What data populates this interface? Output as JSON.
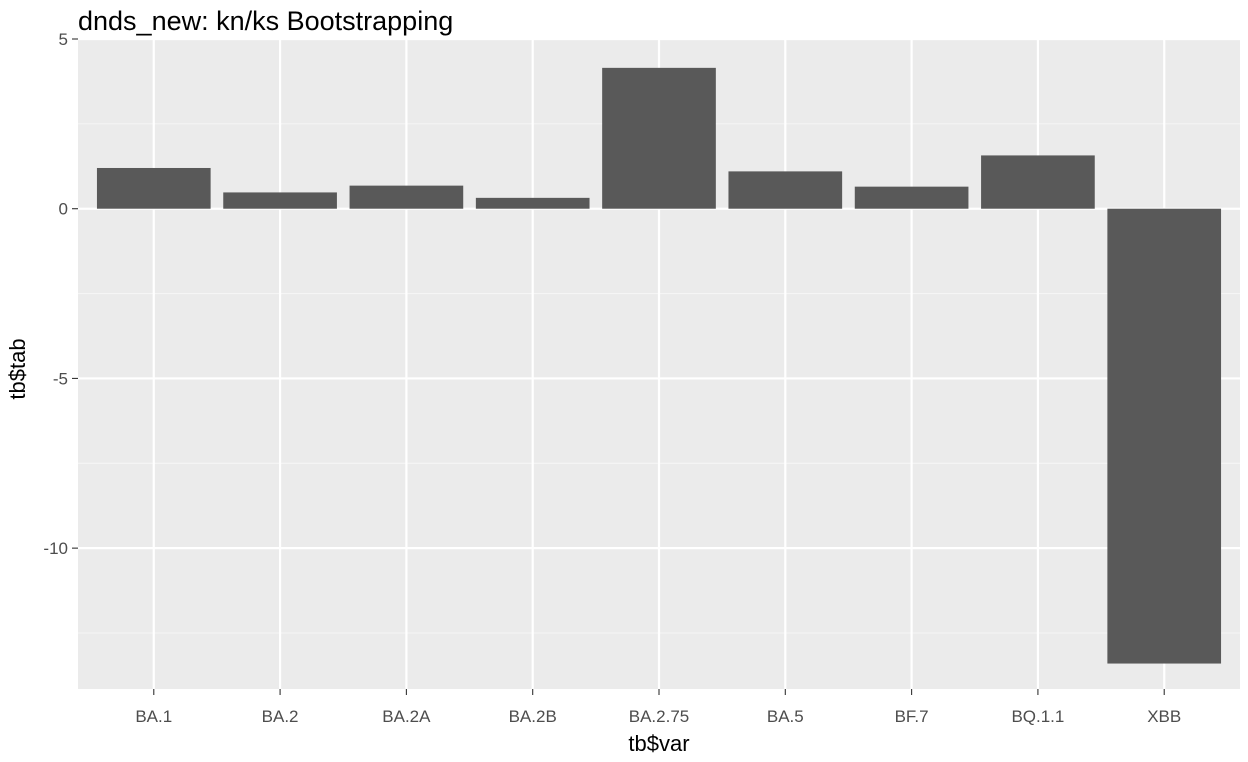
{
  "chart_data": {
    "type": "bar",
    "title": "dnds_new: kn/ks Bootstrapping",
    "xlabel": "tb$var",
    "ylabel": "tb$tab",
    "categories": [
      "BA.1",
      "BA.2",
      "BA.2A",
      "BA.2B",
      "BA.2.75",
      "BA.5",
      "BF.7",
      "BQ.1.1",
      "XBB"
    ],
    "values": [
      1.2,
      0.48,
      0.68,
      0.32,
      4.15,
      1.1,
      0.65,
      1.57,
      -13.4
    ],
    "ylim": [
      -14.15,
      5
    ],
    "yticks": [
      5,
      0,
      -5,
      -10
    ],
    "ytick_labels": [
      "5",
      "0",
      "-5",
      "-10"
    ],
    "grid": true,
    "colors": {
      "bar": "#595959",
      "panel": "#ebebeb",
      "grid_major": "#ffffff",
      "grid_minor": "#f5f5f5",
      "tick_text": "#4d4d4d",
      "tick_mark": "#333333",
      "title_text": "#000000"
    }
  }
}
